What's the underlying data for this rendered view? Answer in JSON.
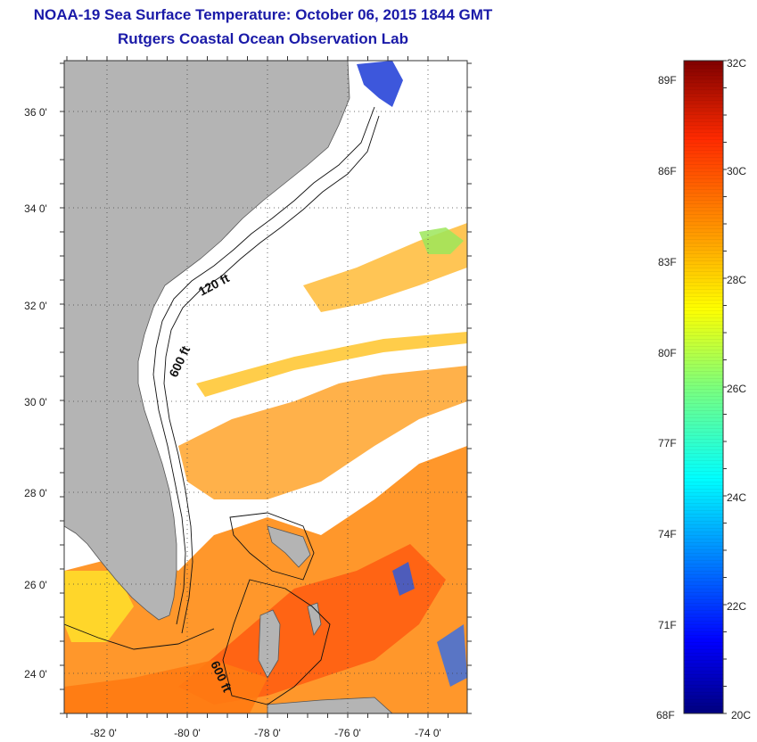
{
  "header": {
    "title": "NOAA-19 Sea Surface Temperature:  October 06, 2015 1844 GMT",
    "subtitle": "Rutgers Coastal Ocean Observation Lab"
  },
  "map": {
    "lon_range": [
      -83,
      -73
    ],
    "lat_range": [
      23,
      37
    ],
    "lon_ticks": [
      "-82 0'",
      "-80 0'",
      "-78 0'",
      "-76 0'",
      "-74 0'"
    ],
    "lat_ticks": [
      "36 0'",
      "34 0'",
      "32 0'",
      "30 0'",
      "28 0'",
      "26 0'",
      "24 0'"
    ],
    "contour_labels": [
      "120 ft",
      "600 ft",
      "600 ft"
    ],
    "colors": {
      "land": "#b4b4b4",
      "background": "#ffffff",
      "grid": "#444444"
    }
  },
  "colorbar": {
    "range_c": [
      20,
      32
    ],
    "c_labels": [
      "32C",
      "30C",
      "28C",
      "26C",
      "24C",
      "22C",
      "20C"
    ],
    "f_labels": [
      "89F",
      "86F",
      "83F",
      "80F",
      "77F",
      "74F",
      "71F",
      "68F"
    ]
  }
}
